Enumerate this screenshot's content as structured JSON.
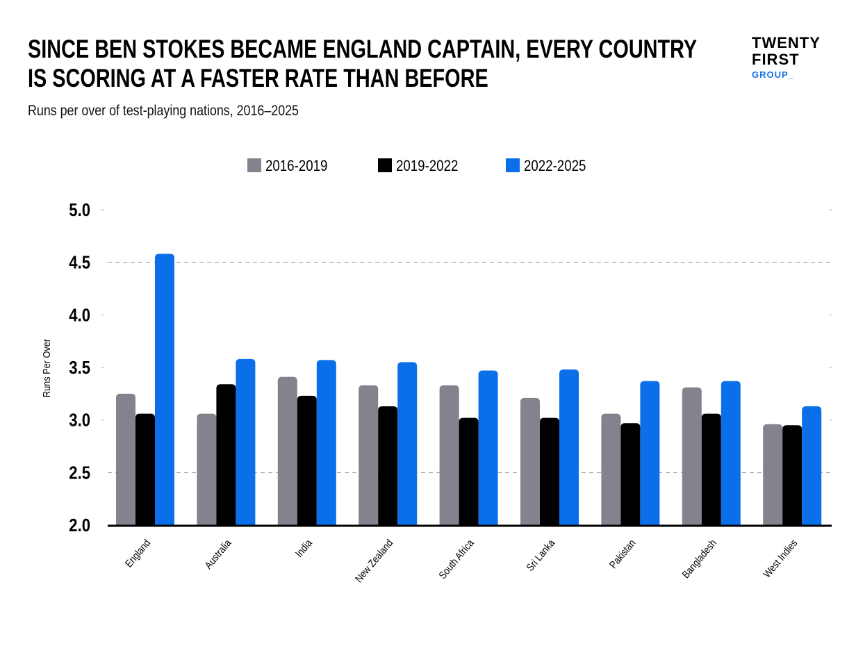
{
  "header": {
    "title_line1": "SINCE BEN STOKES BECAME ENGLAND CAPTAIN, EVERY COUNTRY",
    "title_line2": "IS SCORING AT A FASTER RATE THAN BEFORE",
    "subtitle": "Runs per over of test-playing nations, 2016–2025"
  },
  "logo": {
    "line1": "TWENTY",
    "line2": "FIRST",
    "line3": "GROUP_"
  },
  "chart_data": {
    "type": "bar",
    "title": "SINCE BEN STOKES BECAME ENGLAND CAPTAIN, EVERY COUNTRY IS SCORING AT A FASTER RATE THAN BEFORE",
    "subtitle": "Runs per over of test-playing nations, 2016–2025",
    "xlabel": "",
    "ylabel": "Runs Per Over",
    "ylim": [
      2.0,
      5.0
    ],
    "yticks": [
      "2.0",
      "2.5",
      "3.0",
      "3.5",
      "4.0",
      "4.5",
      "5.0"
    ],
    "legend_position": "top-center",
    "categories": [
      "England",
      "Australia",
      "India",
      "New Zealand",
      "South Africa",
      "Sri Lanka",
      "Pakistan",
      "Bangladesh",
      "West Indies"
    ],
    "series": [
      {
        "name": "2016-2019",
        "color": "#84838d",
        "values": [
          3.25,
          3.06,
          3.41,
          3.33,
          3.33,
          3.21,
          3.06,
          3.31,
          2.96
        ]
      },
      {
        "name": "2019-2022",
        "color": "#000000",
        "values": [
          3.06,
          3.34,
          3.23,
          3.13,
          3.02,
          3.02,
          2.97,
          3.06,
          2.95
        ]
      },
      {
        "name": "2022-2025",
        "color": "#0a6fe8",
        "values": [
          4.58,
          3.58,
          3.57,
          3.55,
          3.47,
          3.48,
          3.37,
          3.37,
          3.13
        ]
      }
    ]
  }
}
